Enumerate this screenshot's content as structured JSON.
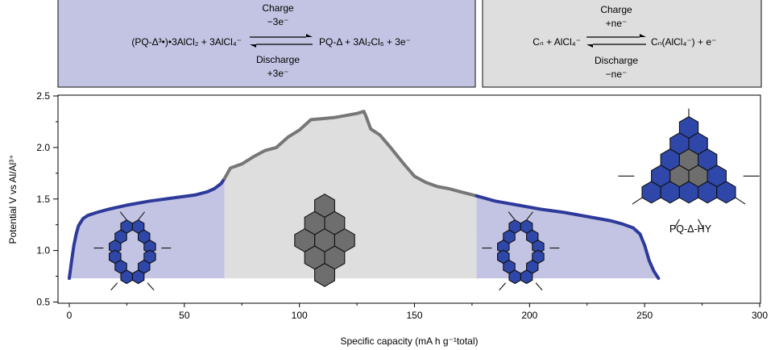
{
  "reaction_boxes": {
    "cathode": {
      "left_species": "(PQ-Δ³•)•3AlCl₂ + 3AlCl₄⁻",
      "right_species": "PQ-Δ + 3Al₂Cl₆ + 3e⁻",
      "top_label": "Charge",
      "top_sub": "−3e⁻",
      "bottom_label": "Discharge",
      "bottom_sub": "+3e⁻",
      "fill": "#c3c4e3"
    },
    "anode": {
      "left_species": "Cₙ + AlCl₄⁻",
      "right_species": "Cₙ(AlCl₄⁻) + e⁻",
      "top_label": "Charge",
      "top_sub": "+ne⁻",
      "bottom_label": "Discharge",
      "bottom_sub": "−ne⁻",
      "fill": "#dedede"
    }
  },
  "molecule_label": "PQ-Δ-HY",
  "chart_data": {
    "type": "line",
    "xlabel": "Specific capacity (mA h g⁻¹total)",
    "ylabel": "Potential V vs Al/Al³⁺",
    "xlim": [
      0,
      300
    ],
    "ylim": [
      0.5,
      2.5
    ],
    "x_ticks": [
      "0",
      "50",
      "100",
      "150",
      "200",
      "250",
      "300"
    ],
    "y_ticks": [
      "0.5",
      "1.0",
      "1.5",
      "2.0",
      "2.5"
    ],
    "grid": false,
    "series": [
      {
        "x": [
          0,
          1,
          2,
          3,
          4,
          6,
          8,
          12,
          17,
          25,
          35,
          45,
          55,
          60,
          63,
          66,
          67.5
        ],
        "y": [
          0.73,
          0.9,
          1.05,
          1.16,
          1.24,
          1.31,
          1.34,
          1.37,
          1.4,
          1.44,
          1.48,
          1.51,
          1.54,
          1.57,
          1.6,
          1.65,
          1.7
        ],
        "color": "#2e3a9a",
        "segment": "charge-low"
      },
      {
        "x": [
          67.5,
          70,
          75,
          80,
          85,
          90,
          95,
          100,
          105,
          110,
          115,
          120,
          125,
          128,
          129,
          131,
          135,
          140,
          145,
          150,
          155,
          160,
          165,
          170,
          177
        ],
        "y": [
          1.7,
          1.8,
          1.84,
          1.91,
          1.97,
          2.0,
          2.1,
          2.17,
          2.27,
          2.28,
          2.29,
          2.31,
          2.33,
          2.35,
          2.3,
          2.18,
          2.12,
          1.99,
          1.85,
          1.72,
          1.66,
          1.62,
          1.6,
          1.57,
          1.53
        ],
        "color": "#777777",
        "segment": "plateau"
      },
      {
        "x": [
          177,
          185,
          195,
          205,
          215,
          225,
          235,
          240,
          245,
          248,
          250,
          252,
          254,
          256
        ],
        "y": [
          1.53,
          1.48,
          1.44,
          1.4,
          1.37,
          1.33,
          1.29,
          1.26,
          1.22,
          1.16,
          1.05,
          0.9,
          0.8,
          0.73
        ],
        "color": "#2e3a9a",
        "segment": "discharge-low"
      }
    ],
    "shading": [
      {
        "name": "cathode-charge-region",
        "x_range": [
          0,
          67.5
        ],
        "color": "#c3c4e3"
      },
      {
        "name": "anode-region",
        "x_range": [
          67.5,
          177
        ],
        "color": "#dedede"
      },
      {
        "name": "cathode-discharge-region",
        "x_range": [
          177,
          256
        ],
        "color": "#c3c4e3"
      }
    ]
  }
}
